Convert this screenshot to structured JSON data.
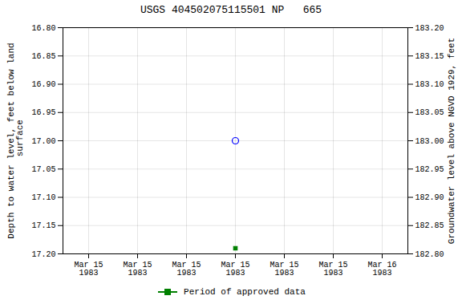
{
  "chart_data": {
    "type": "scatter",
    "title": "USGS 404502075115501 NP   665",
    "y_label": "Depth to water level, feet below land\n surface",
    "y2_label": "Groundwater level above NGVD 1929, feet",
    "categories": [
      "Mar 15\n1983",
      "Mar 15\n1983",
      "Mar 15\n1983",
      "Mar 15\n1983",
      "Mar 15\n1983",
      "Mar 15\n1983",
      "Mar 16\n1983"
    ],
    "series": [
      {
        "color": "#0000ff",
        "marker": "circle",
        "values": [
          null,
          null,
          null,
          17.0,
          null,
          null,
          null
        ]
      },
      {
        "name": "Period of approved data",
        "color": "#008000",
        "marker": "square",
        "values": [
          null,
          null,
          null,
          17.19,
          null,
          null,
          null
        ]
      }
    ],
    "ylim": [
      17.2,
      16.8
    ],
    "yticks": [
      {
        "value": 16.8,
        "label": "16.80"
      },
      {
        "value": 16.85,
        "label": "16.85"
      },
      {
        "value": 16.9,
        "label": "16.90"
      },
      {
        "value": 16.95,
        "label": "16.95"
      },
      {
        "value": 17.0,
        "label": "17.00"
      },
      {
        "value": 17.05,
        "label": "17.05"
      },
      {
        "value": 17.1,
        "label": "17.10"
      },
      {
        "value": 17.15,
        "label": "17.15"
      },
      {
        "value": 17.2,
        "label": "17.20"
      }
    ],
    "y2lim": [
      182.8,
      183.2
    ],
    "y2ticks": [
      {
        "value": 182.8,
        "label": "182.80"
      },
      {
        "value": 182.85,
        "label": "182.85"
      },
      {
        "value": 182.9,
        "label": "182.90"
      },
      {
        "value": 182.95,
        "label": "182.95"
      },
      {
        "value": 183.0,
        "label": "183.00"
      },
      {
        "value": 183.05,
        "label": "183.05"
      },
      {
        "value": 183.1,
        "label": "183.10"
      },
      {
        "value": 183.15,
        "label": "183.15"
      },
      {
        "value": 183.2,
        "label": "183.20"
      }
    ],
    "grid": true,
    "legend": "bottom"
  }
}
